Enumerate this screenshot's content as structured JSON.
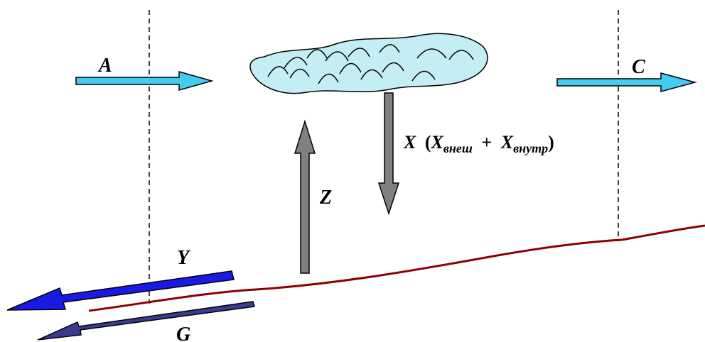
{
  "labels": {
    "A": "A",
    "C": "C",
    "Z": "Z",
    "Y": "Y",
    "G": "G",
    "X": {
      "main": "X",
      "open_paren": "(",
      "x1": "X",
      "x1_sub": "внеш",
      "plus": "+",
      "x2": "X",
      "x2_sub": "внутр",
      "close_paren": ")"
    }
  },
  "colors": {
    "inflow_arrow": "#44ccf0",
    "vertical_arrow": "#808080",
    "y_arrow": "#1a1ae6",
    "g_arrow": "#3a3a90",
    "ground_line": "#8b0000",
    "cloud_fill": "#c4eef4",
    "dashed_line": "#000000"
  }
}
